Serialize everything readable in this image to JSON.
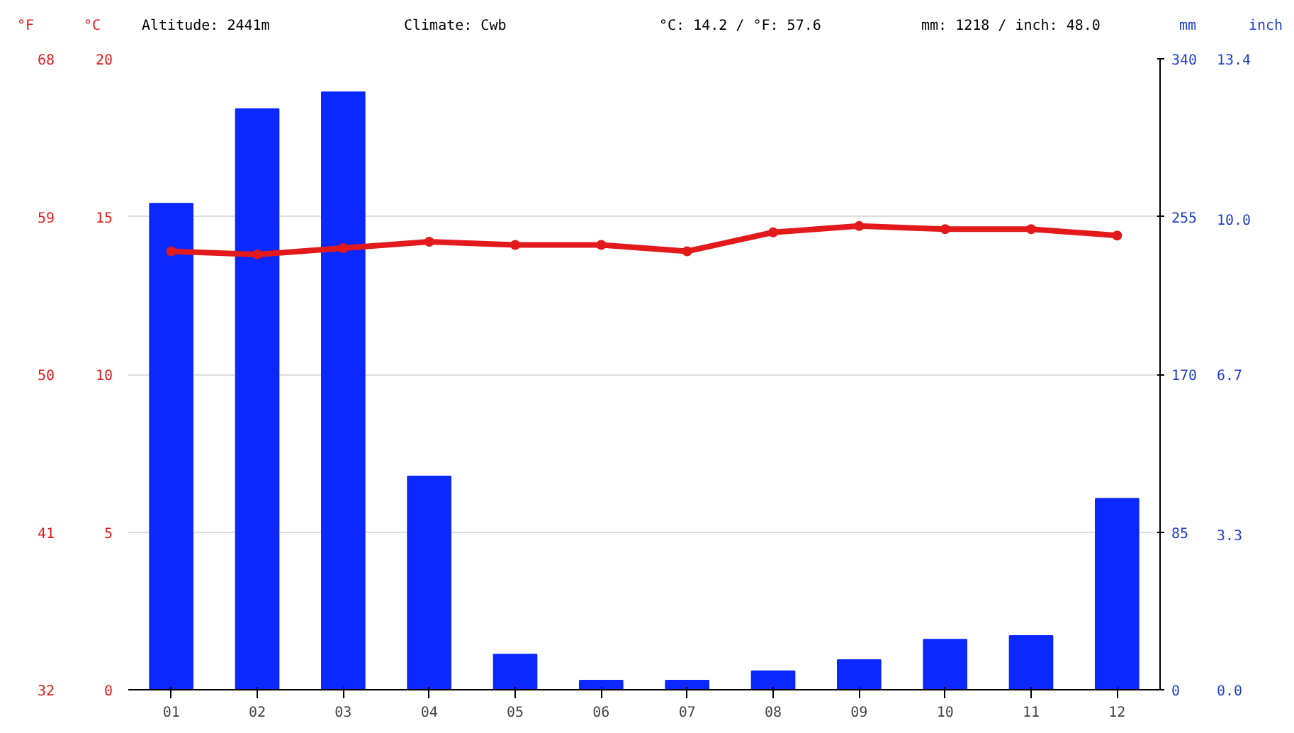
{
  "chart_data": {
    "type": "bar",
    "categories": [
      "01",
      "02",
      "03",
      "04",
      "05",
      "06",
      "07",
      "08",
      "09",
      "10",
      "11",
      "12"
    ],
    "annotations": [
      "Altitude: 2441m",
      "Climate: Cwb",
      "°C: 14.2 / °F: 57.6",
      "mm: 1218 / inch: 48.0",
      "°F",
      "68",
      "59",
      "50",
      "41",
      "32"
    ],
    "ylabel": "°C",
    "y2label": "mm",
    "y3label": "inch",
    "ylim": [
      0,
      20
    ],
    "yticks": [
      0,
      5,
      10,
      15,
      20
    ],
    "y2lim": [
      0,
      340
    ],
    "y2ticks": [
      0,
      85,
      170,
      255,
      340
    ],
    "y3lim": [
      0,
      13.4
    ],
    "y3ticks": [
      {
        "value": 0,
        "label": "0.0"
      },
      {
        "value": 3.3,
        "label": "3.3"
      },
      {
        "value": 6.7,
        "label": "6.7"
      },
      {
        "value": 10,
        "label": "10.0"
      },
      {
        "value": 13.4,
        "label": "13.4"
      }
    ],
    "grid": "y",
    "series": [
      {
        "axis": "y2",
        "color": "#0a28ff",
        "values": [
          262,
          313,
          322,
          115,
          19,
          5,
          5,
          10,
          16,
          27,
          29,
          103
        ]
      },
      {
        "type": "line",
        "axis": "y",
        "color": "#e31a1c",
        "marker": "circle",
        "values": [
          13.9,
          13.8,
          14.0,
          14.2,
          14.1,
          14.1,
          13.9,
          14.5,
          14.7,
          14.6,
          14.6,
          14.4
        ]
      }
    ]
  }
}
